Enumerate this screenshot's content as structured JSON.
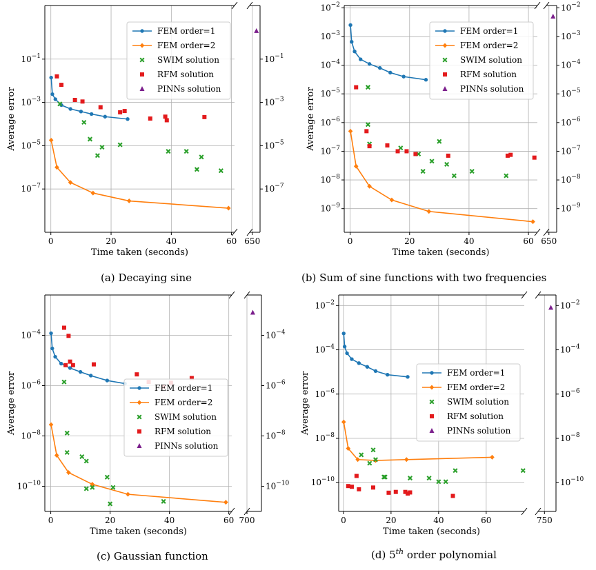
{
  "panels": [
    {
      "label": "(a)",
      "caption_main": "Decaying sine",
      "caption_sup": "",
      "caption_rest": "",
      "chart_data": {
        "type": "line",
        "xlabel": "Time taken (seconds)",
        "ylabel": "Average error",
        "yscale": "log",
        "ylim": [
          1e-09,
          30
        ],
        "xlim_main": [
          -2,
          61
        ],
        "xlim_break": [
          645,
          665
        ],
        "xticks_main": [
          "0",
          "20",
          "40",
          "60"
        ],
        "xticks_break": [
          "650"
        ],
        "yticks": [
          "10^-1",
          "10^-3",
          "10^-5",
          "10^-7"
        ],
        "legend_position": "top-right",
        "grid": true,
        "series": [
          {
            "name": "FEM order=1",
            "marker": "circle",
            "color": "#1f77b4",
            "x": [
              0.1,
              0.5,
              1.5,
              3.5,
              6.5,
              10,
              13.5,
              18,
              25.5
            ],
            "y": [
              0.014,
              0.0024,
              0.0014,
              0.00075,
              0.0005,
              0.00038,
              0.00029,
              0.00022,
              0.00017
            ]
          },
          {
            "name": "FEM order=2",
            "marker": "diamond",
            "color": "#ff7f0e",
            "x": [
              0.1,
              2,
              6.5,
              14,
              26,
              59
            ],
            "y": [
              1.8e-05,
              1e-06,
              2e-07,
              6.5e-08,
              2.8e-08,
              1.3e-08
            ]
          },
          {
            "name": "SWIM solution",
            "marker": "x",
            "color": "#2ca02c",
            "x": [
              3,
              11,
              13,
              15.5,
              17,
              23,
              39,
              45,
              48.5,
              50,
              56.5
            ],
            "y": [
              0.00085,
              0.00012,
              2e-05,
              3.5e-06,
              8.5e-06,
              1.1e-05,
              5.5e-06,
              5.5e-06,
              8e-07,
              3e-06,
              7e-07
            ]
          },
          {
            "name": "RFM solution",
            "marker": "square",
            "color": "#e31a1c",
            "x": [
              2,
              3.5,
              8,
              10.5,
              16.5,
              23,
              24.5,
              33,
              38,
              38.5,
              51
            ],
            "y": [
              0.016,
              0.0065,
              0.0013,
              0.0011,
              0.0006,
              0.00035,
              0.0004,
              0.00018,
              0.00022,
              0.00015,
              0.00021
            ]
          },
          {
            "name": "PINNs solution",
            "marker": "triangle",
            "color": "#7b1f8c",
            "x": [
              658
            ],
            "y": [
              2
            ]
          }
        ]
      }
    },
    {
      "label": "(b)",
      "caption_main": "Sum of sine functions with two frequencies",
      "caption_sup": "",
      "caption_rest": "",
      "chart_data": {
        "type": "line",
        "xlabel": "Time taken (seconds)",
        "ylabel": "Average error",
        "yscale": "log",
        "ylim": [
          1.5e-10,
          0.012
        ],
        "xlim_main": [
          -2,
          63
        ],
        "xlim_break": [
          645,
          665
        ],
        "xticks_main": [
          "0",
          "20",
          "40",
          "60"
        ],
        "xticks_break": [
          "650"
        ],
        "yticks": [
          "10^-2",
          "10^-3",
          "10^-4",
          "10^-5",
          "10^-6",
          "10^-7",
          "10^-8",
          "10^-9"
        ],
        "legend_position": "top-right",
        "grid": true,
        "series": [
          {
            "name": "FEM order=1",
            "marker": "circle",
            "color": "#1f77b4",
            "x": [
              0.1,
              0.5,
              1.5,
              3.5,
              6.5,
              10,
              13.5,
              18,
              25.5
            ],
            "y": [
              0.0025,
              0.00065,
              0.0003,
              0.00016,
              0.00011,
              8e-05,
              5.5e-05,
              4e-05,
              3.1e-05
            ]
          },
          {
            "name": "FEM order=2",
            "marker": "diamond",
            "color": "#ff7f0e",
            "x": [
              0.1,
              2,
              6.5,
              14,
              26.5,
              61.5
            ],
            "y": [
              5e-07,
              3e-08,
              6e-09,
              2e-09,
              8e-10,
              3.5e-10
            ]
          },
          {
            "name": "SWIM solution",
            "marker": "x",
            "color": "#2ca02c",
            "x": [
              6,
              6,
              6.5,
              17,
              23,
              24.5,
              27.5,
              30,
              32.5,
              35,
              41,
              52.5
            ],
            "y": [
              1.7e-05,
              8.5e-07,
              1.8e-07,
              1.3e-07,
              8e-08,
              2e-08,
              4.5e-08,
              2.2e-07,
              3.5e-08,
              1.4e-08,
              2e-08,
              1.4e-08
            ]
          },
          {
            "name": "RFM solution",
            "marker": "square",
            "color": "#e31a1c",
            "x": [
              2,
              5.5,
              6.5,
              12.5,
              16,
              19,
              22,
              33,
              53,
              54,
              62
            ],
            "y": [
              1.7e-05,
              5e-07,
              1.5e-07,
              1.6e-07,
              1e-07,
              1e-07,
              8e-08,
              7e-08,
              7e-08,
              7.5e-08,
              6e-08
            ]
          },
          {
            "name": "PINNs solution",
            "marker": "triangle",
            "color": "#7b1f8c",
            "x": [
              658
            ],
            "y": [
              0.005
            ]
          }
        ]
      }
    },
    {
      "label": "(c)",
      "caption_main": "Gaussian function",
      "caption_sup": "",
      "caption_rest": "",
      "chart_data": {
        "type": "line",
        "xlabel": "Time taken (seconds)",
        "ylabel": "Average error",
        "yscale": "log",
        "ylim": [
          1e-11,
          0.004
        ],
        "xlim_main": [
          -2,
          61
        ],
        "xlim_break": [
          700,
          725
        ],
        "xticks_main": [
          "0",
          "20",
          "40",
          "60"
        ],
        "xticks_break": [
          "700"
        ],
        "yticks": [
          "10^-4",
          "10^-6",
          "10^-8",
          "10^-10"
        ],
        "legend_position": "bottom-right",
        "grid": true,
        "series": [
          {
            "name": "FEM order=1",
            "marker": "circle",
            "color": "#1f77b4",
            "x": [
              0.1,
              0.5,
              1.5,
              3.5,
              6.5,
              10,
              13.5,
              19,
              25
            ],
            "y": [
              0.00012,
              3e-05,
              1.4e-05,
              7.5e-06,
              5e-06,
              3.5e-06,
              2.5e-06,
              1.6e-06,
              1.2e-06
            ]
          },
          {
            "name": "FEM order=2",
            "marker": "diamond",
            "color": "#ff7f0e",
            "x": [
              0.1,
              2,
              6,
              14,
              26,
              59
            ],
            "y": [
              2.8e-08,
              1.7e-09,
              3.5e-10,
              1.2e-10,
              4.8e-11,
              2.3e-11
            ]
          },
          {
            "name": "SWIM solution",
            "marker": "x",
            "color": "#2ca02c",
            "x": [
              4.5,
              5.5,
              5.5,
              10.5,
              12,
              12,
              14,
              19,
              20,
              21,
              38
            ],
            "y": [
              1.4e-06,
              1.3e-08,
              2.2e-09,
              1.5e-09,
              1e-09,
              8e-11,
              9e-11,
              2.3e-10,
              2e-11,
              9e-11,
              2.5e-11
            ]
          },
          {
            "name": "RFM solution",
            "marker": "square",
            "color": "#e31a1c",
            "x": [
              4.5,
              5,
              6,
              6.5,
              7.5,
              14.5,
              29,
              33,
              38,
              40.5,
              47.5
            ],
            "y": [
              0.0002,
              6.5e-06,
              9.5e-05,
              9e-06,
              6.5e-06,
              7e-06,
              2.8e-06,
              1.4e-06,
              9e-07,
              1.3e-06,
              2e-06
            ]
          },
          {
            "name": "PINNs solution",
            "marker": "triangle",
            "color": "#7b1f8c",
            "x": [
              710
            ],
            "y": [
              0.0008
            ]
          }
        ]
      }
    },
    {
      "label": "(d)",
      "caption_main": "5",
      "caption_sup": "th",
      "caption_rest": " order polynomial",
      "chart_data": {
        "type": "line",
        "xlabel": "Time taken (seconds)",
        "ylabel": "Average error",
        "yscale": "log",
        "ylim": [
          5e-12,
          0.03
        ],
        "xlim_main": [
          -2,
          76
        ],
        "xlim_break": [
          740,
          768
        ],
        "xticks_main": [
          "0",
          "20",
          "40",
          "60"
        ],
        "xticks_break": [
          "750"
        ],
        "yticks": [
          "10^-2",
          "10^-4",
          "10^-6",
          "10^-8",
          "10^-10"
        ],
        "legend_position": "center-right",
        "grid": true,
        "series": [
          {
            "name": "FEM order=1",
            "marker": "circle",
            "color": "#1f77b4",
            "x": [
              0.1,
              0.5,
              1.5,
              3.5,
              6.5,
              10,
              13.5,
              18.5,
              27
            ],
            "y": [
              0.00055,
              0.00014,
              7e-05,
              3.8e-05,
              2.5e-05,
              1.7e-05,
              1.1e-05,
              7.5e-06,
              6e-06
            ]
          },
          {
            "name": "FEM order=2",
            "marker": "diamond",
            "color": "#ff7f0e",
            "x": [
              0.1,
              2,
              6,
              13.5,
              26.5,
              62.5
            ],
            "y": [
              5.5e-08,
              3.5e-09,
              1.1e-09,
              1e-09,
              1.1e-09,
              1.4e-09
            ]
          },
          {
            "name": "SWIM solution",
            "marker": "x",
            "color": "#2ca02c",
            "x": [
              7.5,
              11,
              12.5,
              13.5,
              17,
              17.5,
              28,
              36,
              40,
              43,
              47,
              75.5
            ],
            "y": [
              1.8e-09,
              7.5e-10,
              3e-09,
              1.1e-09,
              1.8e-10,
              1.8e-10,
              1.6e-10,
              1.6e-10,
              1.1e-10,
              1.1e-10,
              3.5e-10,
              3.5e-10
            ]
          },
          {
            "name": "RFM solution",
            "marker": "square",
            "color": "#e31a1c",
            "x": [
              2,
              3.5,
              5.5,
              6.5,
              12.5,
              19,
              22,
              26,
              27,
              28,
              46
            ],
            "y": [
              7e-11,
              6.5e-11,
              2e-10,
              5e-11,
              6e-11,
              3.5e-11,
              3.8e-11,
              3.8e-11,
              3.2e-11,
              3.6e-11,
              2.5e-11
            ]
          },
          {
            "name": "PINNs solution",
            "marker": "triangle",
            "color": "#7b1f8c",
            "x": [
              760
            ],
            "y": [
              0.008
            ]
          }
        ]
      }
    }
  ]
}
